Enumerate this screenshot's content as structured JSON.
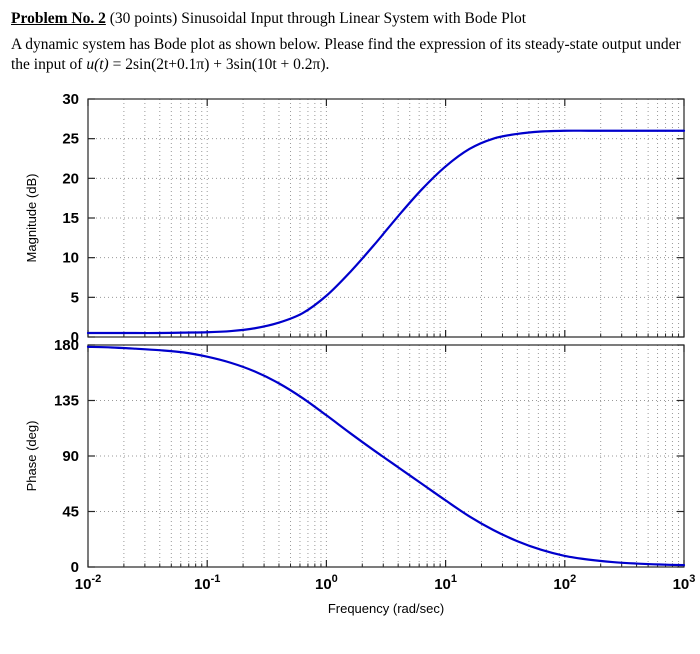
{
  "problem": {
    "heading_label": "Problem No. 2",
    "heading_rest": " (30 points) Sinusoidal Input through Linear System with Bode Plot",
    "body_prefix": "A dynamic system has Bode plot as shown below. Please find the expression of its steady-state output under the input of ",
    "expr_var": "u(t)",
    "expr_rest": " = 2sin(2t+0.1π) + 3sin(10t + 0.2π)."
  },
  "colors": {
    "curve": "#0000cc",
    "grid": "#999999",
    "axis": "#262626",
    "text": "#000000"
  },
  "chart_data": [
    {
      "type": "line",
      "subplot": "magnitude",
      "title": "",
      "ylabel": "Magnitude (dB)",
      "x_scale": "log",
      "x_unit": "rad/sec",
      "xlim_exponents": [
        -2,
        3
      ],
      "ylim": [
        0,
        30
      ],
      "y_ticks": [
        0,
        5,
        10,
        15,
        20,
        25,
        30
      ],
      "x_tick_exponents": [
        -2,
        -1,
        0,
        1,
        2,
        3
      ],
      "grid": "on",
      "legend": "none",
      "line_color": "#0000cc",
      "series": [
        {
          "name": "magnitude_dB",
          "x_log10": [
            -2,
            -1.8,
            -1.6,
            -1.4,
            -1.2,
            -1,
            -0.8,
            -0.6,
            -0.4,
            -0.2,
            0,
            0.2,
            0.4,
            0.6,
            0.8,
            1,
            1.2,
            1.4,
            1.6,
            1.8,
            2,
            2.2,
            2.4,
            2.6,
            2.8,
            3
          ],
          "y": [
            0.5,
            0.5,
            0.5,
            0.5,
            0.55,
            0.6,
            0.75,
            1.1,
            1.8,
            3,
            5.2,
            8.2,
            11.6,
            15.2,
            18.6,
            21.5,
            23.7,
            25,
            25.6,
            25.9,
            26,
            26,
            26,
            26,
            26,
            26
          ]
        }
      ]
    },
    {
      "type": "line",
      "subplot": "phase",
      "title": "",
      "ylabel": "Phase (deg)",
      "xlabel": "Frequency  (rad/sec)",
      "x_scale": "log",
      "x_unit": "rad/sec",
      "xlim_exponents": [
        -2,
        3
      ],
      "ylim": [
        0,
        180
      ],
      "y_ticks": [
        0,
        45,
        90,
        135,
        180
      ],
      "x_tick_exponents": [
        -2,
        -1,
        0,
        1,
        2,
        3
      ],
      "grid": "on",
      "legend": "none",
      "line_color": "#0000cc",
      "series": [
        {
          "name": "phase_deg",
          "x_log10": [
            -2,
            -1.8,
            -1.6,
            -1.4,
            -1.2,
            -1,
            -0.8,
            -0.6,
            -0.4,
            -0.2,
            0,
            0.2,
            0.4,
            0.6,
            0.8,
            1,
            1.2,
            1.4,
            1.6,
            1.8,
            2,
            2.2,
            2.4,
            2.6,
            2.8,
            3
          ],
          "y": [
            178.5,
            178,
            177,
            175.8,
            174,
            170.5,
            165.5,
            158.5,
            149,
            137,
            123,
            108.5,
            94.5,
            81,
            67.5,
            54,
            41,
            30,
            21,
            14,
            9,
            6,
            4,
            2.8,
            2,
            1.5
          ]
        }
      ]
    }
  ]
}
